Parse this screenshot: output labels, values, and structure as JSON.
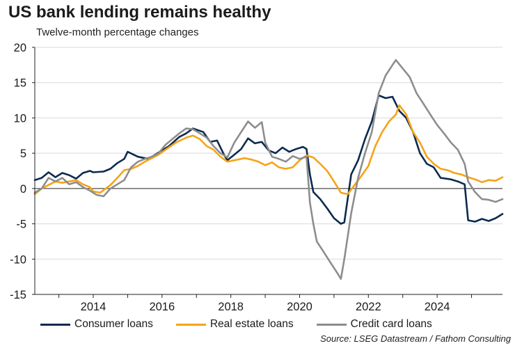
{
  "title": "US bank lending remains healthy",
  "subtitle": "Twelve-month percentage changes",
  "source": "Source: LSEG Datastream / Fathom Consulting",
  "chart_data": {
    "type": "line",
    "ylim": [
      -15,
      20
    ],
    "yticks": [
      -15,
      -10,
      -5,
      0,
      5,
      10,
      15,
      20
    ],
    "xlim": [
      2012.3,
      2025.9
    ],
    "xticks": [
      2014,
      2016,
      2018,
      2020,
      2022,
      2024
    ],
    "grid": true,
    "legend_position": "bottom",
    "series": [
      {
        "name": "Consumer loans",
        "color": "#0b2a4f",
        "points": [
          [
            2012.3,
            1.2
          ],
          [
            2012.5,
            1.5
          ],
          [
            2012.7,
            2.3
          ],
          [
            2012.9,
            1.6
          ],
          [
            2013.1,
            2.2
          ],
          [
            2013.3,
            1.9
          ],
          [
            2013.5,
            1.4
          ],
          [
            2013.7,
            2.2
          ],
          [
            2013.9,
            2.5
          ],
          [
            2014.0,
            2.3
          ],
          [
            2014.3,
            2.4
          ],
          [
            2014.5,
            2.8
          ],
          [
            2014.7,
            3.6
          ],
          [
            2014.9,
            4.2
          ],
          [
            2015.0,
            5.2
          ],
          [
            2015.3,
            4.5
          ],
          [
            2015.6,
            4.2
          ],
          [
            2015.9,
            5.1
          ],
          [
            2016.2,
            6.0
          ],
          [
            2016.5,
            7.3
          ],
          [
            2016.7,
            7.8
          ],
          [
            2016.9,
            8.5
          ],
          [
            2017.2,
            8.0
          ],
          [
            2017.4,
            6.6
          ],
          [
            2017.6,
            6.8
          ],
          [
            2017.8,
            4.8
          ],
          [
            2017.9,
            4.0
          ],
          [
            2018.1,
            4.8
          ],
          [
            2018.3,
            5.6
          ],
          [
            2018.5,
            7.1
          ],
          [
            2018.7,
            6.4
          ],
          [
            2018.9,
            6.6
          ],
          [
            2019.1,
            5.4
          ],
          [
            2019.3,
            5.0
          ],
          [
            2019.5,
            5.8
          ],
          [
            2019.7,
            5.2
          ],
          [
            2019.9,
            5.6
          ],
          [
            2020.1,
            5.9
          ],
          [
            2020.2,
            5.6
          ],
          [
            2020.3,
            2.0
          ],
          [
            2020.4,
            -0.5
          ],
          [
            2020.6,
            -1.5
          ],
          [
            2020.8,
            -2.8
          ],
          [
            2021.0,
            -4.2
          ],
          [
            2021.2,
            -5.0
          ],
          [
            2021.3,
            -4.8
          ],
          [
            2021.5,
            2.0
          ],
          [
            2021.7,
            4.0
          ],
          [
            2021.9,
            7.0
          ],
          [
            2022.1,
            9.5
          ],
          [
            2022.3,
            13.2
          ],
          [
            2022.5,
            12.8
          ],
          [
            2022.7,
            13.0
          ],
          [
            2022.9,
            11.0
          ],
          [
            2023.1,
            10.0
          ],
          [
            2023.3,
            8.0
          ],
          [
            2023.5,
            5.0
          ],
          [
            2023.7,
            3.5
          ],
          [
            2023.9,
            3.0
          ],
          [
            2024.1,
            1.5
          ],
          [
            2024.4,
            1.3
          ],
          [
            2024.6,
            1.0
          ],
          [
            2024.8,
            0.6
          ],
          [
            2024.9,
            -4.5
          ],
          [
            2025.1,
            -4.7
          ],
          [
            2025.3,
            -4.3
          ],
          [
            2025.5,
            -4.6
          ],
          [
            2025.7,
            -4.2
          ],
          [
            2025.9,
            -3.6
          ]
        ]
      },
      {
        "name": "Real estate loans",
        "color": "#f5a318",
        "points": [
          [
            2012.3,
            -0.8
          ],
          [
            2012.5,
            0.0
          ],
          [
            2012.7,
            0.5
          ],
          [
            2012.9,
            1.0
          ],
          [
            2013.1,
            0.8
          ],
          [
            2013.3,
            1.0
          ],
          [
            2013.5,
            1.2
          ],
          [
            2013.7,
            0.6
          ],
          [
            2013.9,
            0.2
          ],
          [
            2014.0,
            -0.4
          ],
          [
            2014.2,
            -0.6
          ],
          [
            2014.5,
            0.5
          ],
          [
            2014.7,
            1.5
          ],
          [
            2014.9,
            2.6
          ],
          [
            2015.1,
            2.8
          ],
          [
            2015.3,
            3.2
          ],
          [
            2015.5,
            3.8
          ],
          [
            2015.7,
            4.3
          ],
          [
            2015.9,
            4.8
          ],
          [
            2016.1,
            5.5
          ],
          [
            2016.4,
            6.5
          ],
          [
            2016.7,
            7.2
          ],
          [
            2016.9,
            7.5
          ],
          [
            2017.1,
            7.0
          ],
          [
            2017.3,
            6.0
          ],
          [
            2017.5,
            5.5
          ],
          [
            2017.7,
            4.5
          ],
          [
            2017.9,
            3.8
          ],
          [
            2018.1,
            4.0
          ],
          [
            2018.4,
            4.3
          ],
          [
            2018.6,
            4.1
          ],
          [
            2018.8,
            3.8
          ],
          [
            2019.0,
            3.3
          ],
          [
            2019.2,
            3.7
          ],
          [
            2019.4,
            3.0
          ],
          [
            2019.6,
            2.8
          ],
          [
            2019.8,
            3.0
          ],
          [
            2020.0,
            4.0
          ],
          [
            2020.2,
            4.7
          ],
          [
            2020.4,
            4.4
          ],
          [
            2020.6,
            3.5
          ],
          [
            2020.8,
            2.5
          ],
          [
            2021.0,
            1.0
          ],
          [
            2021.2,
            -0.6
          ],
          [
            2021.4,
            -0.8
          ],
          [
            2021.6,
            0.5
          ],
          [
            2021.8,
            1.8
          ],
          [
            2022.0,
            3.2
          ],
          [
            2022.2,
            6.0
          ],
          [
            2022.4,
            8.0
          ],
          [
            2022.6,
            9.5
          ],
          [
            2022.8,
            10.5
          ],
          [
            2022.9,
            11.8
          ],
          [
            2023.1,
            10.5
          ],
          [
            2023.3,
            8.0
          ],
          [
            2023.5,
            6.5
          ],
          [
            2023.7,
            4.5
          ],
          [
            2023.9,
            3.5
          ],
          [
            2024.1,
            2.8
          ],
          [
            2024.3,
            2.6
          ],
          [
            2024.5,
            2.2
          ],
          [
            2024.7,
            2.0
          ],
          [
            2024.9,
            1.6
          ],
          [
            2025.1,
            1.3
          ],
          [
            2025.3,
            0.9
          ],
          [
            2025.5,
            1.2
          ],
          [
            2025.7,
            1.1
          ],
          [
            2025.9,
            1.6
          ]
        ]
      },
      {
        "name": "Credit card loans",
        "color": "#8d8d8d",
        "points": [
          [
            2012.3,
            -0.6
          ],
          [
            2012.5,
            0.0
          ],
          [
            2012.7,
            1.5
          ],
          [
            2012.9,
            1.0
          ],
          [
            2013.1,
            1.5
          ],
          [
            2013.3,
            0.6
          ],
          [
            2013.5,
            0.9
          ],
          [
            2013.7,
            0.2
          ],
          [
            2013.9,
            -0.3
          ],
          [
            2014.1,
            -0.9
          ],
          [
            2014.3,
            -1.1
          ],
          [
            2014.5,
            0.0
          ],
          [
            2014.7,
            0.6
          ],
          [
            2014.9,
            1.2
          ],
          [
            2015.1,
            3.0
          ],
          [
            2015.3,
            3.8
          ],
          [
            2015.5,
            4.2
          ],
          [
            2015.7,
            4.5
          ],
          [
            2015.9,
            5.0
          ],
          [
            2016.1,
            6.2
          ],
          [
            2016.3,
            7.0
          ],
          [
            2016.5,
            7.8
          ],
          [
            2016.7,
            8.5
          ],
          [
            2016.9,
            8.4
          ],
          [
            2017.1,
            7.8
          ],
          [
            2017.3,
            7.2
          ],
          [
            2017.5,
            6.0
          ],
          [
            2017.7,
            5.0
          ],
          [
            2017.9,
            4.4
          ],
          [
            2018.1,
            6.5
          ],
          [
            2018.3,
            8.0
          ],
          [
            2018.5,
            9.5
          ],
          [
            2018.7,
            8.6
          ],
          [
            2018.9,
            9.4
          ],
          [
            2019.0,
            6.5
          ],
          [
            2019.2,
            4.5
          ],
          [
            2019.4,
            4.2
          ],
          [
            2019.6,
            3.8
          ],
          [
            2019.8,
            4.6
          ],
          [
            2020.0,
            4.2
          ],
          [
            2020.2,
            4.5
          ],
          [
            2020.3,
            -2.0
          ],
          [
            2020.4,
            -5.0
          ],
          [
            2020.5,
            -7.5
          ],
          [
            2020.7,
            -9.0
          ],
          [
            2020.9,
            -10.5
          ],
          [
            2021.1,
            -12.0
          ],
          [
            2021.2,
            -12.8
          ],
          [
            2021.3,
            -10.0
          ],
          [
            2021.5,
            -3.5
          ],
          [
            2021.7,
            1.5
          ],
          [
            2021.9,
            5.0
          ],
          [
            2022.1,
            8.0
          ],
          [
            2022.3,
            13.5
          ],
          [
            2022.5,
            16.0
          ],
          [
            2022.7,
            17.5
          ],
          [
            2022.8,
            18.2
          ],
          [
            2023.0,
            17.0
          ],
          [
            2023.2,
            15.8
          ],
          [
            2023.4,
            13.5
          ],
          [
            2023.6,
            12.0
          ],
          [
            2023.8,
            10.5
          ],
          [
            2024.0,
            9.0
          ],
          [
            2024.2,
            7.8
          ],
          [
            2024.4,
            6.5
          ],
          [
            2024.6,
            5.5
          ],
          [
            2024.8,
            3.5
          ],
          [
            2024.9,
            1.0
          ],
          [
            2025.1,
            -0.5
          ],
          [
            2025.3,
            -1.5
          ],
          [
            2025.5,
            -1.6
          ],
          [
            2025.7,
            -1.9
          ],
          [
            2025.9,
            -1.5
          ]
        ]
      }
    ]
  }
}
